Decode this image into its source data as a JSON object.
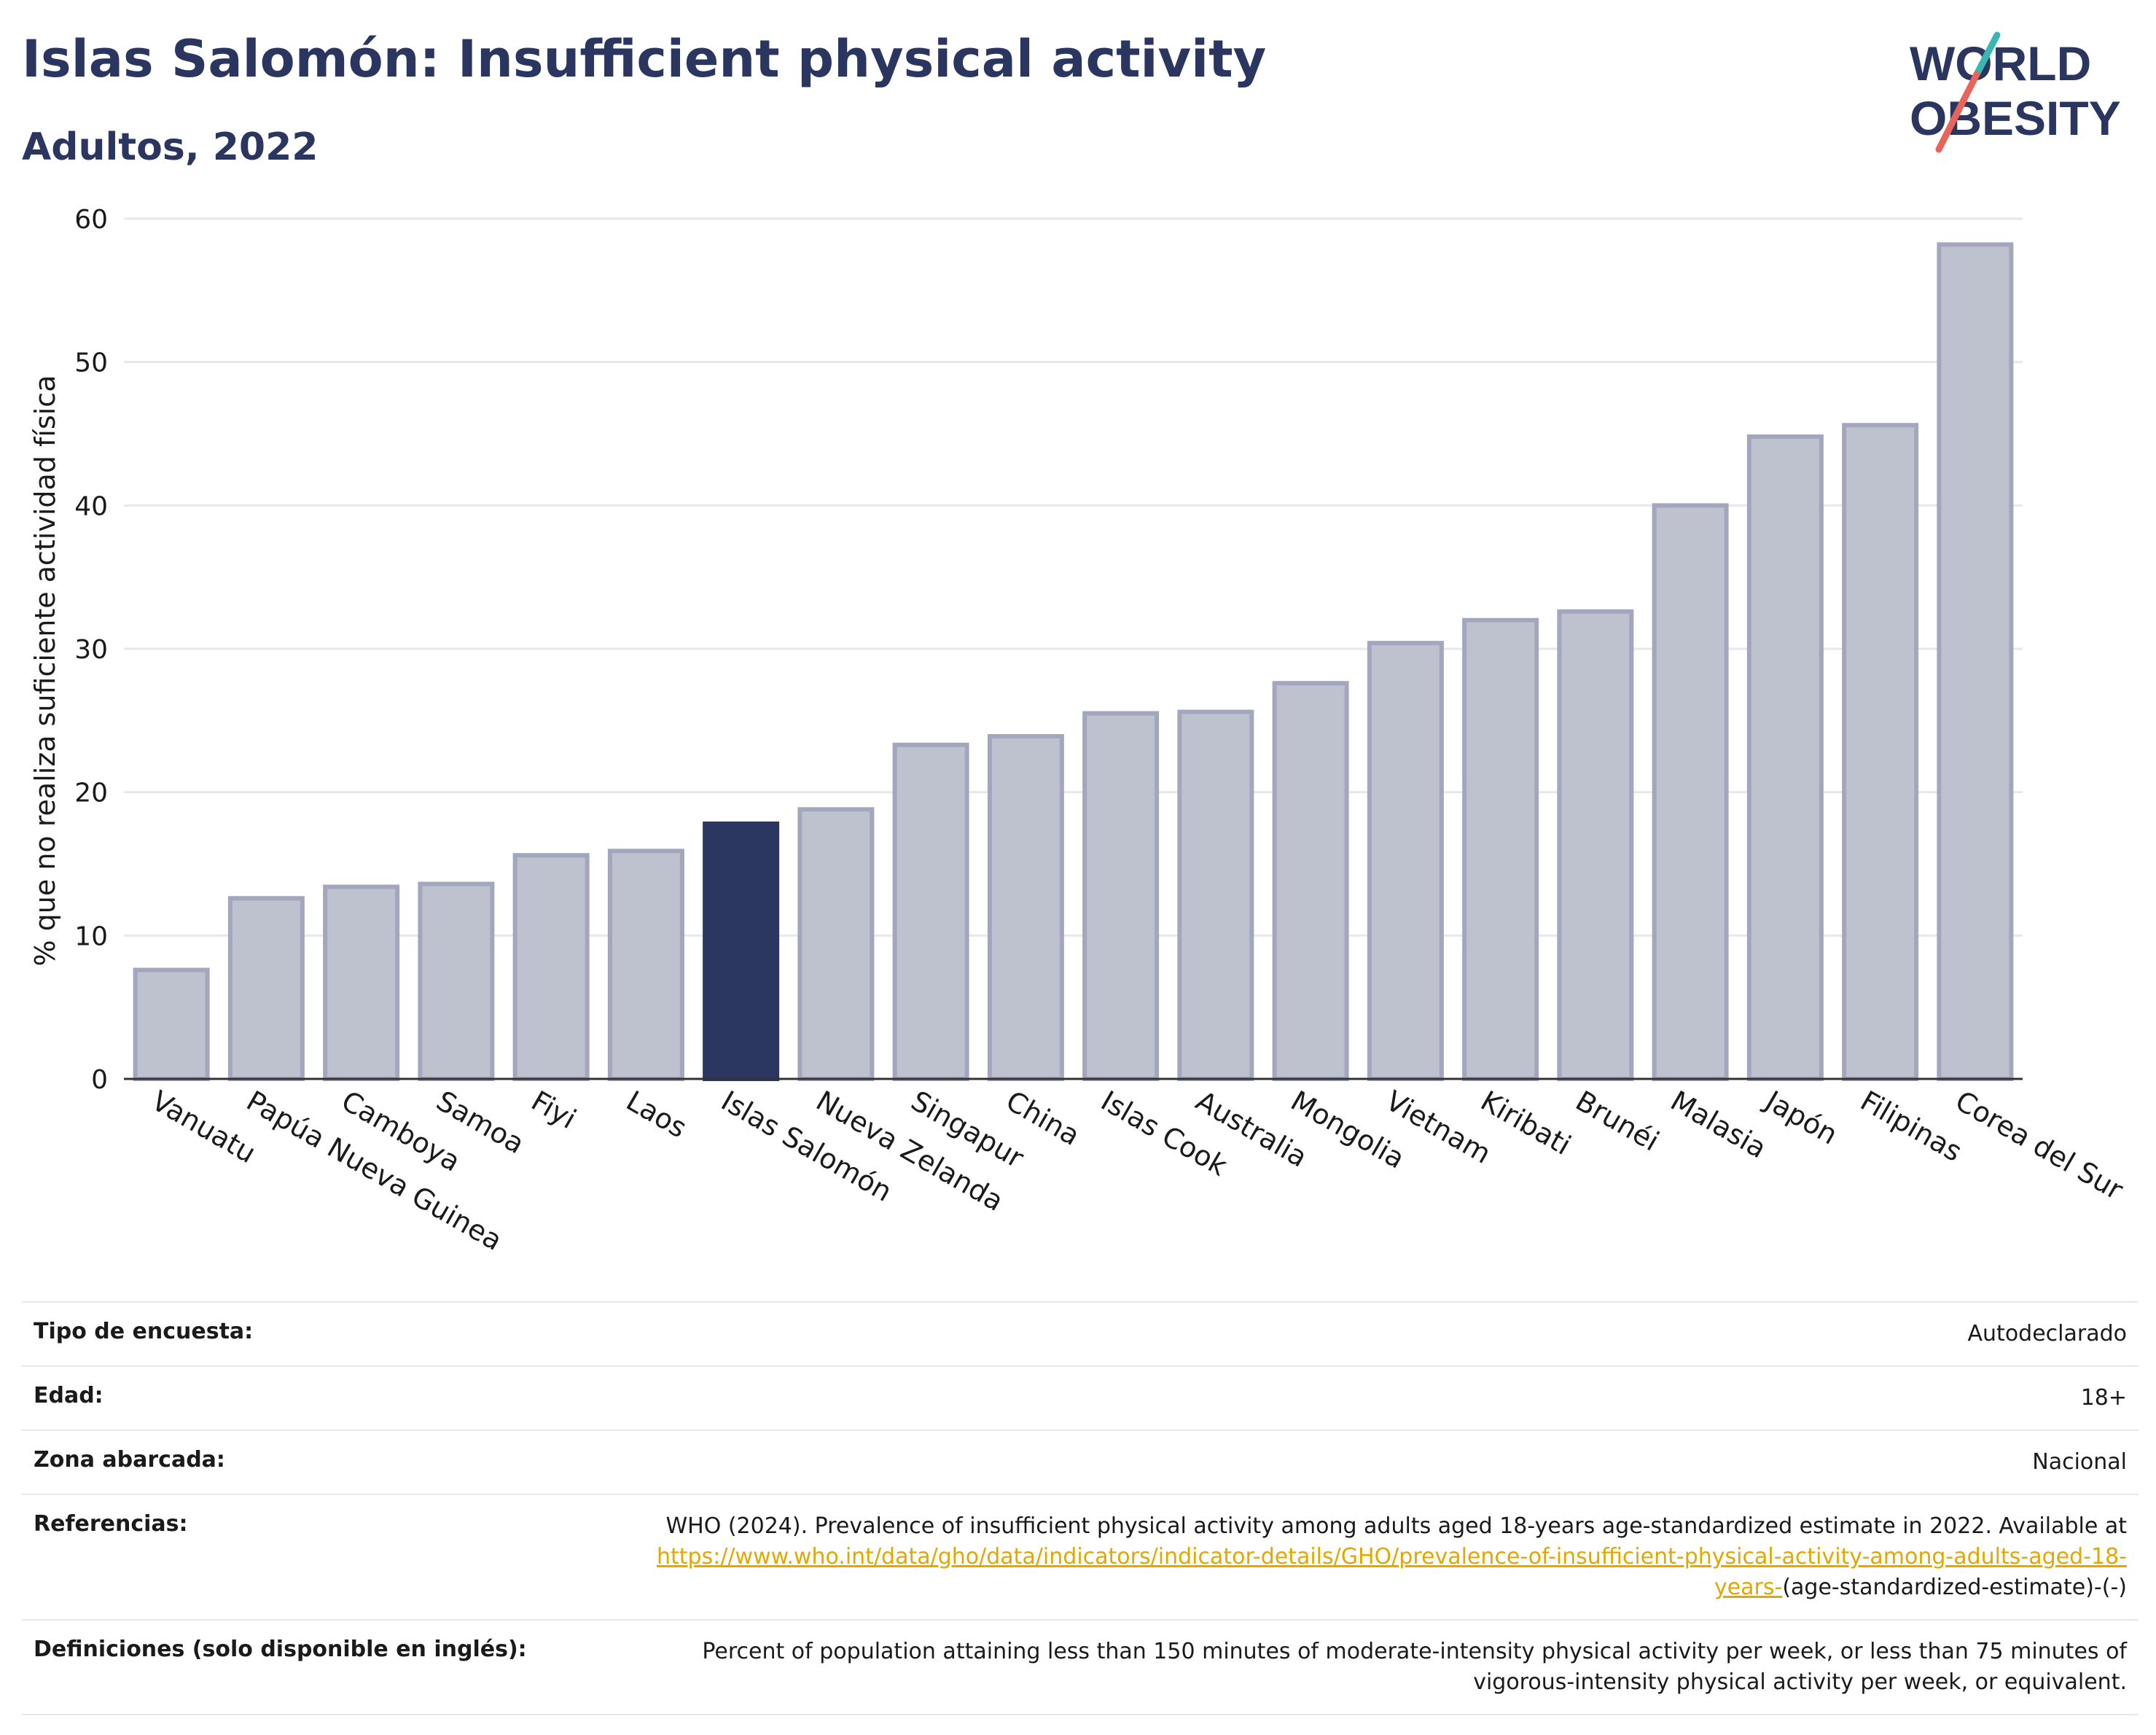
{
  "header": {
    "title": "Islas Salomón: Insufficient physical activity",
    "subtitle": "Adultos, 2022",
    "logo_line1": "WORLD",
    "logo_line2": "OBESITY"
  },
  "colors": {
    "title": "#2a3560",
    "bar": "#bec1ce",
    "bar_border": "#a2a7bd",
    "highlight": "#2b3661",
    "link": "#e0a800"
  },
  "chart_data": {
    "type": "bar",
    "categories": [
      "Vanuatu",
      "Papúa Nueva Guinea",
      "Camboya",
      "Samoa",
      "Fiyi",
      "Laos",
      "Islas Salomón",
      "Nueva Zelanda",
      "Singapur",
      "China",
      "Islas Cook",
      "Australia",
      "Mongolia",
      "Vietnam",
      "Kiribati",
      "Brunéi",
      "Malasia",
      "Japón",
      "Filipinas",
      "Corea del Sur"
    ],
    "values": [
      7.6,
      12.6,
      13.4,
      13.6,
      15.6,
      15.9,
      17.8,
      18.8,
      23.3,
      23.9,
      25.5,
      25.6,
      27.6,
      30.4,
      32.0,
      32.6,
      40.0,
      44.8,
      45.6,
      58.2
    ],
    "highlight": "Islas Salomón",
    "title": "Islas Salomón: Insufficient physical activity",
    "xlabel": "",
    "ylabel": "% que no realiza suficiente actividad física",
    "ylim": [
      0,
      60
    ],
    "yticks": [
      "0",
      "10",
      "20",
      "30",
      "40",
      "50",
      "60"
    ],
    "grid": true
  },
  "info_table": {
    "survey_label": "Tipo de encuesta:",
    "survey_value": "Autodeclarado",
    "age_label": "Edad:",
    "age_value": "18+",
    "zone_label": "Zona abarcada:",
    "zone_value": "Nacional",
    "ref_label": "Referencias:",
    "ref_text": "WHO (2024). Prevalence of insufficient physical activity among adults aged 18-years age-standardized estimate in 2022. Available at",
    "ref_link": "https://www.who.int/data/gho/data/indicators/indicator-details/GHO/prevalence-of-insufficient-physical-activity-among-adults-aged-18-years-",
    "ref_tail": "(age-standardized-estimate)-(-)",
    "def_label": "Definiciones (solo disponible en inglés):",
    "def_text": "Percent of population attaining less than 150 minutes of moderate-intensity physical activity per week, or less than 75 minutes of vigorous-intensity physical activity per week, or equivalent."
  }
}
